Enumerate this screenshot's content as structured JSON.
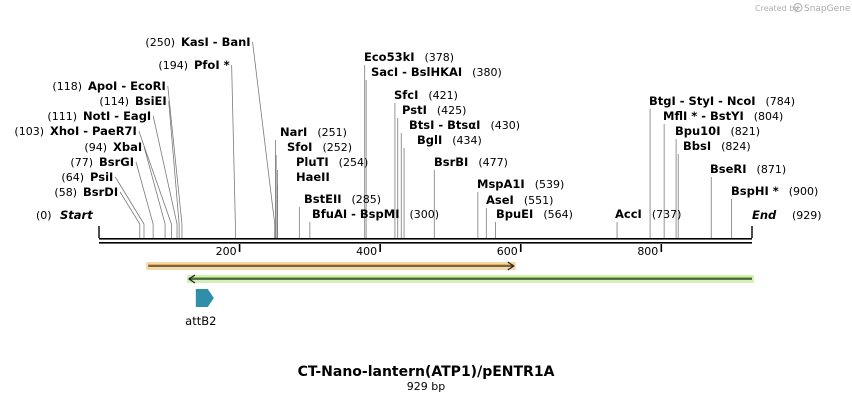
{
  "branding": {
    "created_by": "Created by",
    "brand": "SnapGene"
  },
  "map": {
    "title": "CT-Nano-lantern(ATP1)/pENTR1A",
    "length_label": "929 bp",
    "total_bp": 929,
    "ticks": [
      200,
      400,
      600,
      800
    ],
    "colors": {
      "backbone": "#000000",
      "orange_feature": "#e8a03a",
      "orange_halo": "#f3d8a8",
      "green_feature": "#5fb92a",
      "green_halo": "#d6eeb8",
      "attB2": "#2f8ea8"
    }
  },
  "sites": [
    {
      "label": "Start",
      "pos": 0,
      "pos_label": "(0)",
      "italic": true
    },
    {
      "label": "BsrDI",
      "pos": 58,
      "pos_label": "(58)"
    },
    {
      "label": "PsiI",
      "pos": 64,
      "pos_label": "(64)"
    },
    {
      "label": "BsrGI",
      "pos": 77,
      "pos_label": "(77)"
    },
    {
      "label": "XbaI",
      "pos": 94,
      "pos_label": "(94)"
    },
    {
      "label": "XhoI - PaeR7I",
      "pos": 103,
      "pos_label": "(103)"
    },
    {
      "label": "NotI - EagI",
      "pos": 111,
      "pos_label": "(111)"
    },
    {
      "label": "BsiEI",
      "pos": 114,
      "pos_label": "(114)"
    },
    {
      "label": "ApoI - EcoRI",
      "pos": 118,
      "pos_label": "(118)"
    },
    {
      "label": "PfoI *",
      "pos": 194,
      "pos_label": "(194)"
    },
    {
      "label": "KasI - BanI",
      "pos": 250,
      "pos_label": "(250)"
    },
    {
      "label": "NarI",
      "pos": 251,
      "pos_label": "(251)"
    },
    {
      "label": "SfoI",
      "pos": 252,
      "pos_label": "(252)"
    },
    {
      "label": "PluTI",
      "pos": 254,
      "pos_label": "(254)"
    },
    {
      "label": "HaeII",
      "pos": 254,
      "pos_label": ""
    },
    {
      "label": "BstEII",
      "pos": 285,
      "pos_label": "(285)"
    },
    {
      "label": "BfuAI - BspMI",
      "pos": 300,
      "pos_label": "(300)"
    },
    {
      "label": "Eco53kI",
      "pos": 378,
      "pos_label": "(378)"
    },
    {
      "label": "SacI - BslHKAI",
      "pos": 380,
      "pos_label": "(380)"
    },
    {
      "label": "SfcI",
      "pos": 421,
      "pos_label": "(421)"
    },
    {
      "label": "PstI",
      "pos": 425,
      "pos_label": "(425)"
    },
    {
      "label": "BtsI - BtsαI",
      "pos": 430,
      "pos_label": "(430)"
    },
    {
      "label": "BglI",
      "pos": 434,
      "pos_label": "(434)"
    },
    {
      "label": "BsrBI",
      "pos": 477,
      "pos_label": "(477)"
    },
    {
      "label": "MspA1I",
      "pos": 539,
      "pos_label": "(539)"
    },
    {
      "label": "AseI",
      "pos": 551,
      "pos_label": "(551)"
    },
    {
      "label": "BpuEI",
      "pos": 564,
      "pos_label": "(564)"
    },
    {
      "label": "AccI",
      "pos": 737,
      "pos_label": "(737)"
    },
    {
      "label": "BtgI - StyI - NcoI",
      "pos": 784,
      "pos_label": "(784)"
    },
    {
      "label": "MflI * - BstYI",
      "pos": 804,
      "pos_label": "(804)"
    },
    {
      "label": "Bpu10I",
      "pos": 821,
      "pos_label": "(821)"
    },
    {
      "label": "BbsI",
      "pos": 824,
      "pos_label": "(824)"
    },
    {
      "label": "BseRI",
      "pos": 871,
      "pos_label": "(871)"
    },
    {
      "label": "BspHI *",
      "pos": 900,
      "pos_label": "(900)"
    },
    {
      "label": "End",
      "pos": 929,
      "pos_label": "(929)",
      "italic": true
    }
  ],
  "features": [
    {
      "name": "orange-feature-bar",
      "start": 70,
      "end": 590,
      "direction": "forward",
      "color": "#e8a03a",
      "halo": "#f3d8a8"
    },
    {
      "name": "green-feature-bar",
      "start": 128,
      "end": 929,
      "direction": "reverse",
      "color": "#5fb92a",
      "halo": "#d6eeb8"
    },
    {
      "name": "attB2",
      "label": "attB2",
      "start": 68,
      "end": 92,
      "direction": "forward",
      "color": "#2f8ea8"
    }
  ]
}
